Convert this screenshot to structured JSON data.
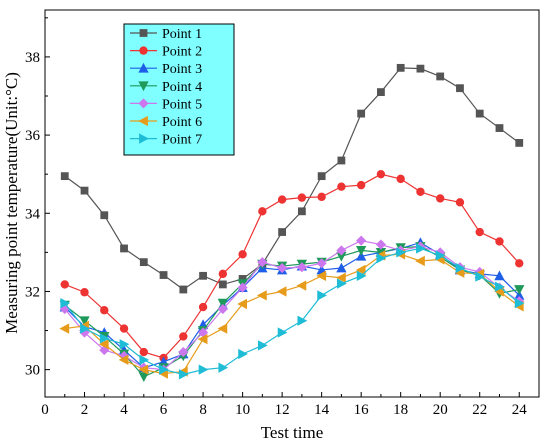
{
  "chart_data": {
    "type": "line",
    "title": "",
    "xlabel": "Test time",
    "ylabel": "Measuring point temperature(Unit:°C)",
    "xlim": [
      0,
      25
    ],
    "ylim": [
      29.3,
      39.2
    ],
    "xticks": [
      "0",
      "2",
      "4",
      "6",
      "8",
      "10",
      "12",
      "14",
      "16",
      "18",
      "20",
      "22",
      "24"
    ],
    "yticks": [
      "30",
      "32",
      "34",
      "36",
      "38"
    ],
    "grid": false,
    "legend_position": "top-left",
    "legend_background": "#7fffff",
    "x": [
      1,
      2,
      3,
      4,
      5,
      6,
      7,
      8,
      9,
      10,
      11,
      12,
      13,
      14,
      15,
      16,
      17,
      18,
      19,
      20,
      21,
      22,
      23,
      24
    ],
    "series": [
      {
        "name": "Point 1",
        "color": "#555555",
        "marker": "square",
        "values": [
          34.95,
          34.58,
          33.95,
          33.1,
          32.75,
          32.42,
          32.05,
          32.4,
          32.18,
          32.32,
          32.7,
          33.52,
          34.05,
          34.95,
          35.35,
          36.55,
          37.1,
          37.72,
          37.7,
          37.5,
          37.2,
          36.55,
          36.18,
          35.8
        ]
      },
      {
        "name": "Point 2",
        "color": "#ee3333",
        "marker": "circle",
        "values": [
          32.18,
          31.98,
          31.52,
          31.05,
          30.45,
          30.3,
          30.85,
          31.6,
          32.45,
          32.95,
          34.05,
          34.35,
          34.4,
          34.42,
          34.68,
          34.72,
          35.0,
          34.88,
          34.55,
          34.38,
          34.28,
          33.52,
          33.28,
          32.72
        ]
      },
      {
        "name": "Point 3",
        "color": "#1f5fe8",
        "marker": "triangle-up",
        "values": [
          31.6,
          31.1,
          30.95,
          30.5,
          30.05,
          30.2,
          30.4,
          31.15,
          31.65,
          32.1,
          32.6,
          32.55,
          32.65,
          32.55,
          32.6,
          32.9,
          33.0,
          33.1,
          33.25,
          32.95,
          32.55,
          32.45,
          32.4,
          31.9
        ]
      },
      {
        "name": "Point 4",
        "color": "#1f9a5a",
        "marker": "triangle-down",
        "values": [
          31.65,
          31.25,
          30.85,
          30.4,
          29.82,
          30.05,
          30.35,
          31.0,
          31.7,
          32.2,
          32.7,
          32.65,
          32.7,
          32.75,
          32.9,
          33.05,
          33.0,
          33.12,
          33.15,
          32.88,
          32.55,
          32.42,
          31.95,
          32.05
        ]
      },
      {
        "name": "Point 5",
        "color": "#cc77ee",
        "marker": "diamond",
        "values": [
          31.55,
          30.95,
          30.5,
          30.35,
          30.05,
          30.0,
          30.45,
          30.95,
          31.55,
          32.1,
          32.75,
          32.6,
          32.62,
          32.72,
          33.05,
          33.3,
          33.2,
          33.05,
          33.15,
          33.0,
          32.62,
          32.5,
          32.1,
          31.75
        ]
      },
      {
        "name": "Point 6",
        "color": "#e69c1a",
        "marker": "triangle-left",
        "values": [
          31.05,
          31.12,
          30.65,
          30.25,
          30.0,
          29.9,
          29.95,
          30.78,
          31.05,
          31.68,
          31.9,
          32.0,
          32.15,
          32.4,
          32.35,
          32.55,
          32.92,
          32.95,
          32.78,
          32.82,
          32.48,
          32.45,
          32.0,
          31.62
        ]
      },
      {
        "name": "Point 7",
        "color": "#1fbcd6",
        "marker": "triangle-right",
        "values": [
          31.7,
          31.05,
          30.8,
          30.65,
          30.25,
          30.0,
          29.88,
          30.0,
          30.05,
          30.4,
          30.62,
          30.95,
          31.25,
          31.9,
          32.2,
          32.4,
          32.85,
          33.0,
          33.1,
          32.92,
          32.6,
          32.38,
          32.12,
          31.7
        ]
      }
    ]
  }
}
